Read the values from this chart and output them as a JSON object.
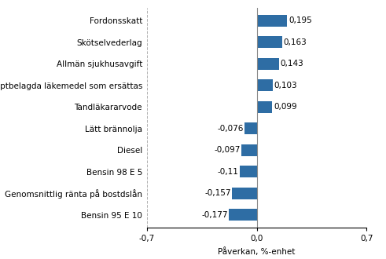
{
  "categories": [
    "Bensin 95 E 10",
    "Genomsnittlig ränta på bostdslån",
    "Bensin 98 E 5",
    "Diesel",
    "Lätt brännolja",
    "Tandläkararvode",
    "Receptbelagda läkemedel som ersättas",
    "Allmän sjukhusavgift",
    "Skötselvederlag",
    "Fordonsskatt"
  ],
  "values": [
    -0.177,
    -0.157,
    -0.11,
    -0.097,
    -0.076,
    0.099,
    0.103,
    0.143,
    0.163,
    0.195
  ],
  "bar_color": "#2e6da4",
  "xlabel": "Påverkan, %-enhet",
  "xlim": [
    -0.7,
    0.7
  ],
  "xticks": [
    -0.7,
    0.0,
    0.7
  ],
  "xticklabels": [
    "-0,7",
    "0,0",
    "0,7"
  ],
  "value_labels": [
    "-0,177",
    "-0,157",
    "-0,11",
    "-0,097",
    "-0,076",
    "0,099",
    "0,103",
    "0,143",
    "0,163",
    "0,195"
  ],
  "background_color": "#ffffff",
  "grid_color": "#b0b0b0",
  "fontsize": 7.5,
  "label_fontsize": 7.5
}
